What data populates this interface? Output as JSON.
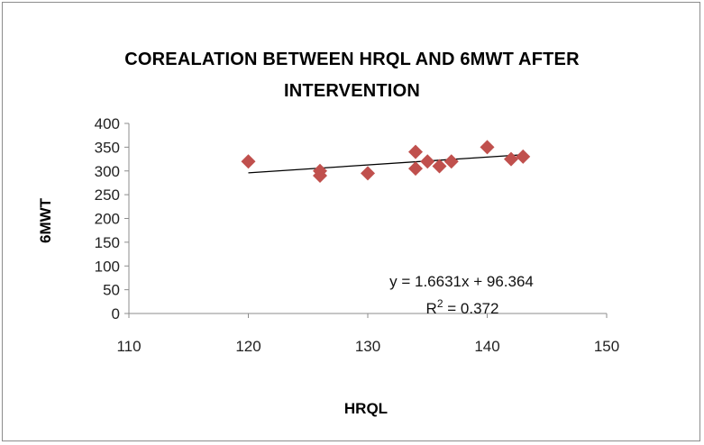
{
  "chart_data": {
    "type": "scatter",
    "title_line1": "COREALATION BETWEEN HRQL AND 6MWT AFTER",
    "title_line2": "INTERVENTION",
    "xlabel": "HRQL",
    "ylabel": "6MWT",
    "xlim": [
      110,
      150
    ],
    "ylim": [
      0,
      400
    ],
    "x_ticks": [
      "110",
      "120",
      "130",
      "140",
      "150"
    ],
    "y_ticks": [
      "0",
      "50",
      "100",
      "150",
      "200",
      "250",
      "300",
      "350",
      "400"
    ],
    "points": [
      {
        "x": 120,
        "y": 320
      },
      {
        "x": 126,
        "y": 300
      },
      {
        "x": 126,
        "y": 290
      },
      {
        "x": 130,
        "y": 295
      },
      {
        "x": 134,
        "y": 340
      },
      {
        "x": 134,
        "y": 305
      },
      {
        "x": 135,
        "y": 320
      },
      {
        "x": 136,
        "y": 310
      },
      {
        "x": 137,
        "y": 320
      },
      {
        "x": 140,
        "y": 350
      },
      {
        "x": 142,
        "y": 325
      },
      {
        "x": 143,
        "y": 330
      }
    ],
    "trendline": {
      "slope": 1.6631,
      "intercept": 96.364,
      "x_start": 120,
      "x_end": 143
    },
    "equation": "y = 1.6631x + 96.364",
    "r2_prefix": "R",
    "r2_sup": "2",
    "r2_value": " = 0.372",
    "marker_color": "#c0504d",
    "grid": false,
    "legend": "none"
  }
}
